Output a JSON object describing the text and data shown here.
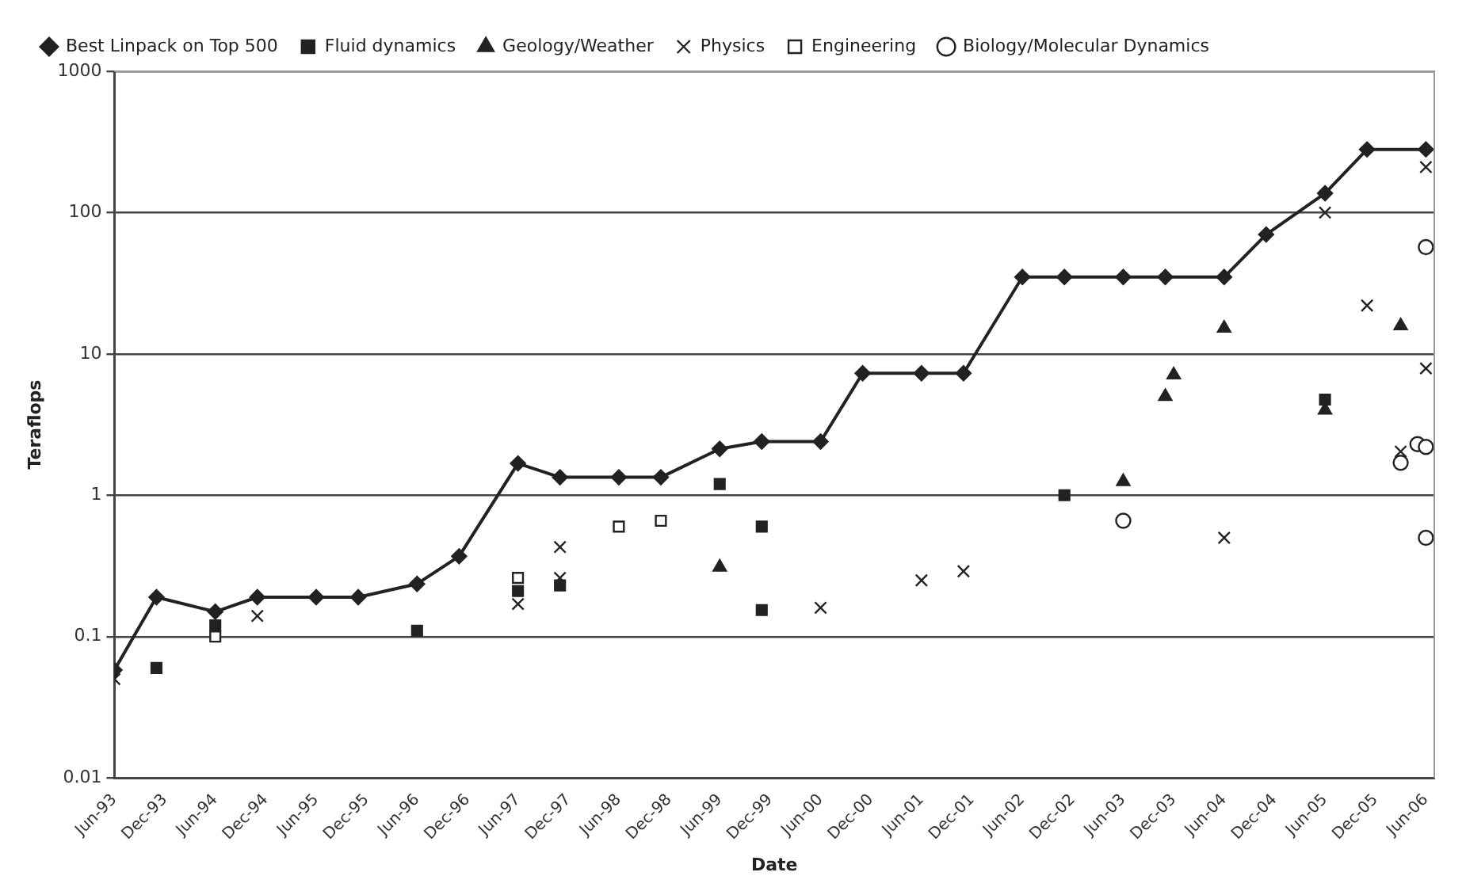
{
  "chart_data": {
    "type": "line",
    "xlabel": "Date",
    "ylabel": "Teraflops",
    "log": "y",
    "grid": "y",
    "legend": "top",
    "xlim": [
      "1993-06",
      "2006-07"
    ],
    "xticks": [
      {
        "value": "1993-06",
        "label": "Jun-93"
      },
      {
        "value": "1993-12",
        "label": "Dec-93"
      },
      {
        "value": "1994-06",
        "label": "Jun-94"
      },
      {
        "value": "1994-12",
        "label": "Dec-94"
      },
      {
        "value": "1995-06",
        "label": "Jun-95"
      },
      {
        "value": "1995-12",
        "label": "Dec-95"
      },
      {
        "value": "1996-06",
        "label": "Jun-96"
      },
      {
        "value": "1996-12",
        "label": "Dec-96"
      },
      {
        "value": "1997-06",
        "label": "Jun-97"
      },
      {
        "value": "1997-12",
        "label": "Dec-97"
      },
      {
        "value": "1998-06",
        "label": "Jun-98"
      },
      {
        "value": "1998-12",
        "label": "Dec-98"
      },
      {
        "value": "1999-06",
        "label": "Jun-99"
      },
      {
        "value": "1999-12",
        "label": "Dec-99"
      },
      {
        "value": "2000-06",
        "label": "Jun-00"
      },
      {
        "value": "2000-12",
        "label": "Dec-00"
      },
      {
        "value": "2001-06",
        "label": "Jun-01"
      },
      {
        "value": "2001-12",
        "label": "Dec-01"
      },
      {
        "value": "2002-06",
        "label": "Jun-02"
      },
      {
        "value": "2002-12",
        "label": "Dec-02"
      },
      {
        "value": "2003-06",
        "label": "Jun-03"
      },
      {
        "value": "2003-12",
        "label": "Dec-03"
      },
      {
        "value": "2004-06",
        "label": "Jun-04"
      },
      {
        "value": "2004-12",
        "label": "Dec-04"
      },
      {
        "value": "2005-06",
        "label": "Jun-05"
      },
      {
        "value": "2005-12",
        "label": "Dec-05"
      },
      {
        "value": "2006-06",
        "label": "Jun-06"
      }
    ],
    "ylim": [
      0.01,
      1000
    ],
    "yticks": [
      0.01,
      0.1,
      1,
      10,
      100,
      1000
    ],
    "series": [
      {
        "name": "Best Linpack on Top 500",
        "marker": "diamond",
        "color": "#222222",
        "x": [
          "1993-06",
          "1993-11",
          "1994-06",
          "1994-11",
          "1995-06",
          "1995-11",
          "1996-06",
          "1996-11",
          "1997-06",
          "1997-11",
          "1998-06",
          "1998-11",
          "1999-06",
          "1999-11",
          "2000-06",
          "2000-11",
          "2001-06",
          "2001-11",
          "2002-06",
          "2002-11",
          "2003-06",
          "2003-11",
          "2004-06",
          "2004-11",
          "2005-06",
          "2005-11",
          "2006-06"
        ],
        "values": [
          0.058,
          0.19,
          0.15,
          0.19,
          0.19,
          0.19,
          0.236,
          0.37,
          1.68,
          1.34,
          1.34,
          1.34,
          2.13,
          2.4,
          2.4,
          7.3,
          7.3,
          7.3,
          35,
          35,
          35,
          35,
          35,
          70,
          137,
          280,
          280
        ]
      },
      {
        "name": "Fluid dynamics",
        "type": "scatter",
        "marker": "square",
        "color": "#222222",
        "x": [
          "1993-11",
          "1994-06",
          "1996-06",
          "1997-06",
          "1997-11",
          "1999-06",
          "1999-11",
          "1999-11",
          "2002-11",
          "2005-06"
        ],
        "values": [
          0.06,
          0.12,
          0.11,
          0.21,
          0.23,
          1.2,
          0.6,
          0.154,
          1.0,
          4.75
        ]
      },
      {
        "name": "Geology/Weather",
        "type": "scatter",
        "marker": "triangle",
        "color": "#222222",
        "x": [
          "1999-06",
          "2003-06",
          "2003-11",
          "2003-12",
          "2004-06",
          "2005-06",
          "2006-03"
        ],
        "values": [
          0.31,
          1.25,
          5.0,
          7.1,
          15.2,
          4.0,
          15.8
        ]
      },
      {
        "name": "Physics",
        "type": "scatter",
        "marker": "cross",
        "color": "#222222",
        "x": [
          "1993-06",
          "1994-11",
          "1997-06",
          "1997-11",
          "1997-11",
          "2000-06",
          "2001-06",
          "2001-11",
          "2004-06",
          "2005-06",
          "2005-11",
          "2006-03",
          "2006-06",
          "2006-06"
        ],
        "values": [
          0.05,
          0.14,
          0.17,
          0.43,
          0.26,
          0.16,
          0.25,
          0.29,
          0.5,
          100,
          22,
          2.04,
          7.9,
          210
        ]
      },
      {
        "name": "Engineering",
        "type": "scatter",
        "marker": "square",
        "color": "#ffffff",
        "x": [
          "1994-06",
          "1997-06",
          "1998-06",
          "1998-11"
        ],
        "values": [
          0.1,
          0.26,
          0.6,
          0.66
        ]
      },
      {
        "name": "Biology/Molecular Dynamics",
        "type": "scatter",
        "marker": "circle",
        "color": "#ffffff",
        "x": [
          "2003-06",
          "2006-03",
          "2006-05",
          "2006-06",
          "2006-06",
          "2006-06"
        ],
        "values": [
          0.66,
          1.7,
          2.3,
          2.2,
          57,
          0.5
        ]
      }
    ]
  }
}
